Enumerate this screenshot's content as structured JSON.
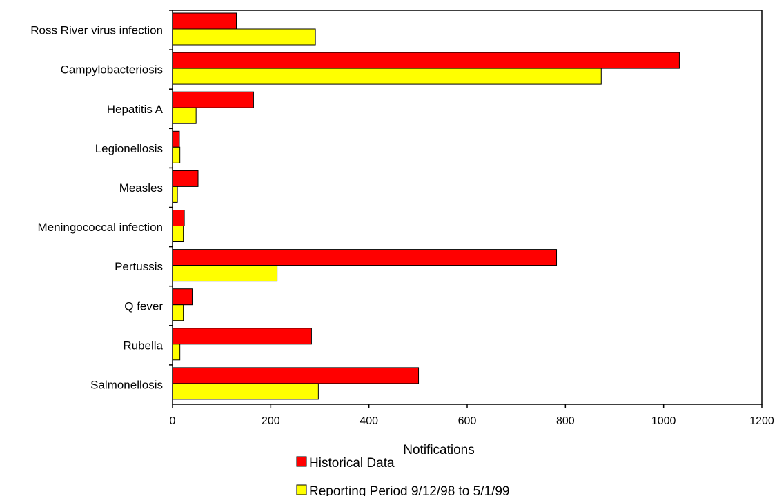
{
  "chart_data": {
    "type": "bar",
    "orientation": "horizontal",
    "categories": [
      "Ross River virus infection",
      "Campylobacteriosis",
      "Hepatitis A",
      "Legionellosis",
      "Measles",
      "Meningococcal infection",
      "Pertussis",
      "Q fever",
      "Rubella",
      "Salmonellosis"
    ],
    "series": [
      {
        "name": "Historical Data",
        "color": "#ff0000",
        "values": [
          130,
          1032,
          165,
          14,
          52,
          24,
          782,
          40,
          283,
          501
        ]
      },
      {
        "name": "Reporting Period 9/12/98 to 5/1/99",
        "color": "#ffff00",
        "values": [
          291,
          873,
          48,
          15,
          10,
          22,
          213,
          22,
          15,
          297
        ]
      }
    ],
    "xlabel": "Notifications",
    "ylabel": "",
    "xlim": [
      0,
      1200
    ],
    "xticks": [
      "0",
      "200",
      "400",
      "600",
      "800",
      "1000",
      "1200"
    ],
    "grid": false,
    "legend": "bottom"
  }
}
